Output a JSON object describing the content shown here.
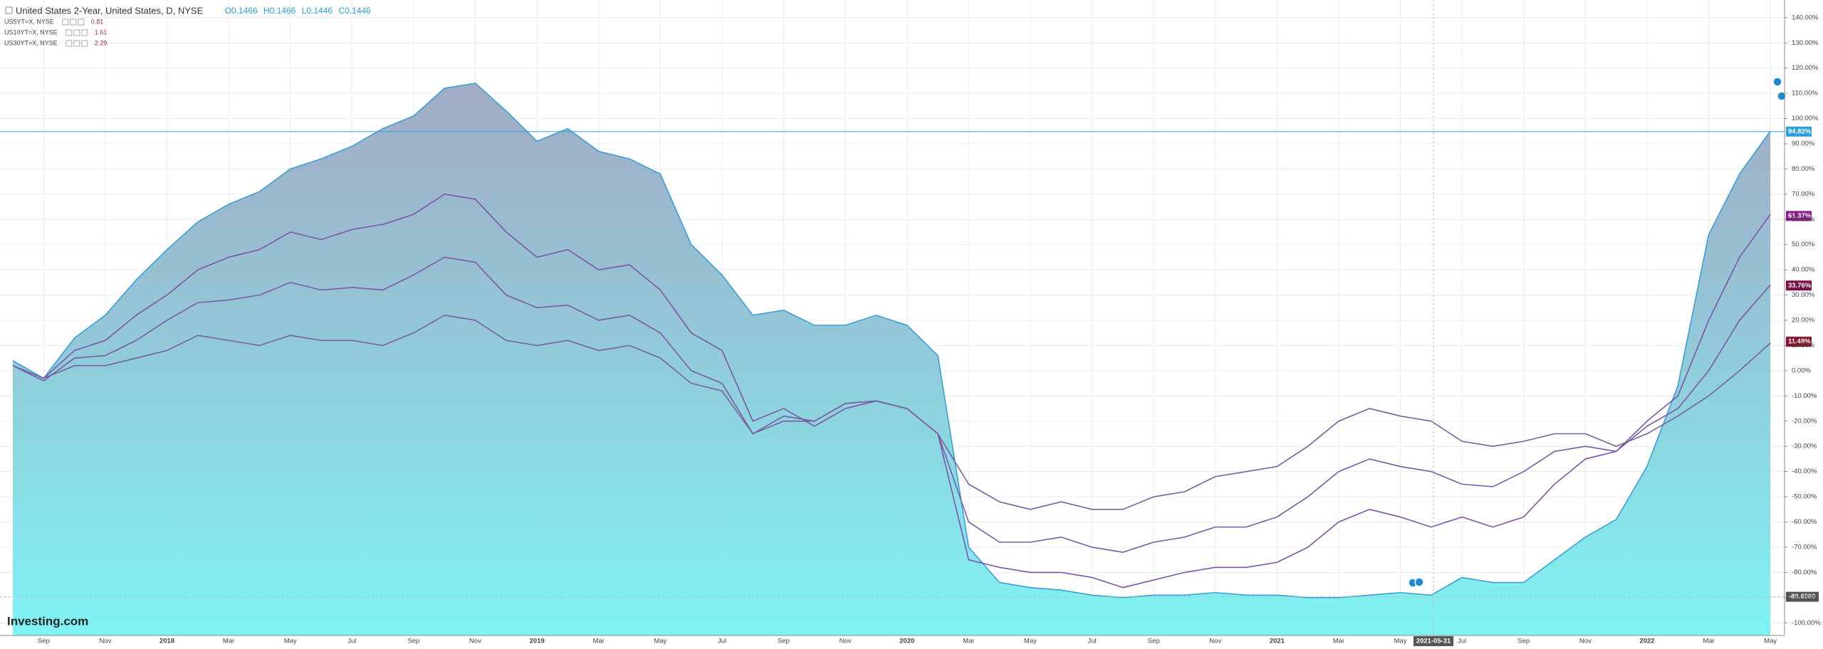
{
  "chart_data": {
    "type": "line",
    "title": "United States 2-Year, United States, D, NYSE",
    "ohlc": [
      "O0.1466",
      "H0.1466",
      "L0.1446",
      "C0.1446"
    ],
    "brand": "Investing.com",
    "categories": [
      null,
      "Sep",
      null,
      "Nov",
      null,
      "2018",
      null,
      "Mar",
      null,
      "May",
      null,
      "Jul",
      null,
      "Sep",
      null,
      "Nov",
      null,
      "2019",
      null,
      "Mar",
      null,
      "May",
      null,
      "Jul",
      null,
      "Sep",
      null,
      "Nov",
      null,
      "2020",
      null,
      "Mar",
      null,
      "May",
      null,
      "Jul",
      null,
      "Sep",
      null,
      "Nov",
      null,
      "2021",
      null,
      "Mar",
      null,
      "May",
      null,
      "Jul",
      null,
      "Sep",
      null,
      "Nov",
      null,
      "2022",
      null,
      "Mar",
      null,
      "May"
    ],
    "series": [
      {
        "name": "United States 2-Year",
        "type": "area",
        "color": "#3a9fd6",
        "values": [
          4,
          -3,
          13,
          22,
          36,
          48,
          59,
          66,
          71,
          80,
          84,
          89,
          96,
          101,
          112,
          114,
          103,
          91,
          96,
          87,
          84,
          78,
          50,
          38,
          22,
          24,
          18,
          18,
          22,
          18,
          6,
          -70,
          -84,
          -86,
          -87,
          -89,
          -90,
          -89,
          -89,
          -88,
          -89,
          -89,
          -90,
          -90,
          -89,
          -88,
          -89,
          -82,
          -84,
          -84,
          -75,
          -66,
          -59,
          -38,
          -6,
          54,
          78,
          95
        ]
      },
      {
        "name": "US5YT=X, NYSE",
        "type": "line",
        "color": "#7d55a8",
        "legend_value": 0.81,
        "legend_color": "#8b2f5e",
        "values": [
          2,
          -3,
          8,
          12,
          22,
          30,
          40,
          45,
          48,
          55,
          52,
          56,
          58,
          62,
          70,
          68,
          55,
          45,
          48,
          40,
          42,
          32,
          15,
          8,
          -20,
          -15,
          -22,
          -15,
          -12,
          -15,
          -25,
          -75,
          -78,
          -80,
          -80,
          -82,
          -86,
          -83,
          -80,
          -78,
          -78,
          -76,
          -70,
          -60,
          -55,
          -58,
          -62,
          -58,
          -62,
          -58,
          -45,
          -35,
          -32,
          -20,
          -10,
          20,
          45,
          62
        ]
      },
      {
        "name": "US10YT=X, NYSE",
        "type": "line",
        "color": "#7a5aa8",
        "legend_value": 1.61,
        "legend_color": "#a0306a",
        "values": [
          2,
          -4,
          5,
          6,
          12,
          20,
          27,
          28,
          30,
          35,
          32,
          33,
          32,
          38,
          45,
          43,
          30,
          25,
          26,
          20,
          22,
          15,
          0,
          -5,
          -25,
          -18,
          -20,
          -13,
          -12,
          -15,
          -25,
          -60,
          -68,
          -68,
          -66,
          -70,
          -72,
          -68,
          -66,
          -62,
          -62,
          -58,
          -50,
          -40,
          -35,
          -38,
          -40,
          -45,
          -46,
          -40,
          -32,
          -30,
          -32,
          -22,
          -15,
          0,
          20,
          34
        ]
      },
      {
        "name": "US30YT=X, NYSE",
        "type": "line",
        "color": "#77609f",
        "legend_value": 2.29,
        "legend_color": "#a02050",
        "values": [
          2,
          -3,
          2,
          2,
          5,
          8,
          14,
          12,
          10,
          14,
          12,
          12,
          10,
          15,
          22,
          20,
          12,
          10,
          12,
          8,
          10,
          5,
          -5,
          -8,
          -25,
          -20,
          -20,
          -13,
          -12,
          -15,
          -25,
          -45,
          -52,
          -55,
          -52,
          -55,
          -55,
          -50,
          -48,
          -42,
          -40,
          -38,
          -30,
          -20,
          -15,
          -18,
          -20,
          -28,
          -30,
          -28,
          -25,
          -25,
          -30,
          -25,
          -18,
          -10,
          0,
          11
        ]
      }
    ],
    "ylim": [
      -105,
      147
    ],
    "yticks": [
      {
        "value": 140,
        "label": "140.00%"
      },
      {
        "value": 130,
        "label": "130.00%"
      },
      {
        "value": 120,
        "label": "120.00%"
      },
      {
        "value": 110,
        "label": "110.00%"
      },
      {
        "value": 100,
        "label": "100.00%"
      },
      {
        "value": 90,
        "label": "90.00%"
      },
      {
        "value": 80,
        "label": "80.00%"
      },
      {
        "value": 70,
        "label": "70.00%"
      },
      {
        "value": 60,
        "label": "60.00%"
      },
      {
        "value": 50,
        "label": "50.00%"
      },
      {
        "value": 40,
        "label": "40.00%"
      },
      {
        "value": 30,
        "label": "30.00%"
      },
      {
        "value": 20,
        "label": "20.00%"
      },
      {
        "value": 10,
        "label": "10.00%"
      },
      {
        "value": 0,
        "label": "0.00%"
      },
      {
        "value": -10,
        "label": "-10.00%"
      },
      {
        "value": -20,
        "label": "-20.00%"
      },
      {
        "value": -30,
        "label": "-30.00%"
      },
      {
        "value": -40,
        "label": "-40.00%"
      },
      {
        "value": -50,
        "label": "-50.00%"
      },
      {
        "value": -60,
        "label": "-60.00%"
      },
      {
        "value": -70,
        "label": "-70.00%"
      },
      {
        "value": -80,
        "label": "-80.00%"
      },
      {
        "value": -90,
        "label": "-90.00%"
      },
      {
        "value": -100,
        "label": "-100.00%"
      }
    ],
    "price_labels": [
      {
        "value": 94.82,
        "label": "94.82%",
        "color": "#2a9fd8",
        "line": true
      },
      {
        "value": 61.37,
        "label": "61.37%",
        "color": "#8b1a89",
        "line": false
      },
      {
        "value": 33.76,
        "label": "33.76%",
        "color": "#7a1048",
        "line": false
      },
      {
        "value": 11.49,
        "label": "11.49%",
        "color": "#8b1030",
        "line": false
      }
    ],
    "crosshair": {
      "value": -89.65,
      "label": "-89.6500",
      "date": "2021-05-31"
    },
    "grid": true
  }
}
